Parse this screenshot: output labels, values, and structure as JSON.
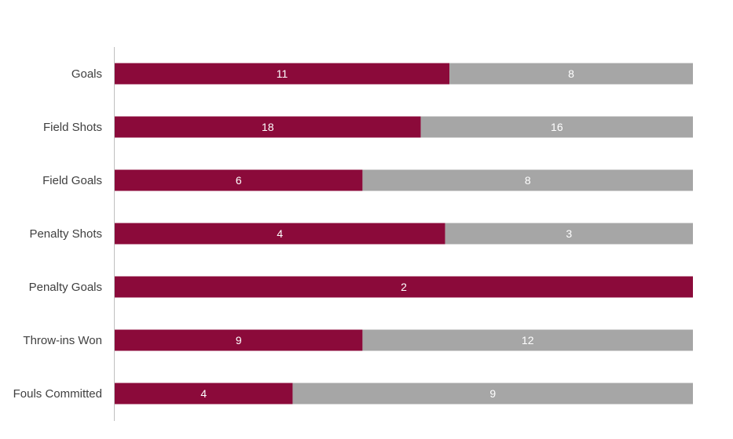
{
  "chart_data": {
    "type": "bar",
    "orientation": "horizontal",
    "stacking": "percent",
    "categories": [
      "Goals",
      "Field Shots",
      "Field Goals",
      "Penalty Shots",
      "Penalty Goals",
      "Throw-ins Won",
      "Fouls Committed"
    ],
    "series": [
      {
        "values": [
          11,
          18,
          6,
          4,
          2,
          9,
          4
        ],
        "color": "#8B0A3A"
      },
      {
        "values": [
          8,
          16,
          8,
          3,
          0,
          12,
          9
        ],
        "color": "#A6A6A6"
      }
    ],
    "data_labels": true,
    "grid": false,
    "legend": "none",
    "title": "",
    "xlabel": "",
    "ylabel": ""
  },
  "colors": {
    "axis_line": "#BFBFBF",
    "label_text": "#404040",
    "data_label_text": "#FFFFFF"
  }
}
